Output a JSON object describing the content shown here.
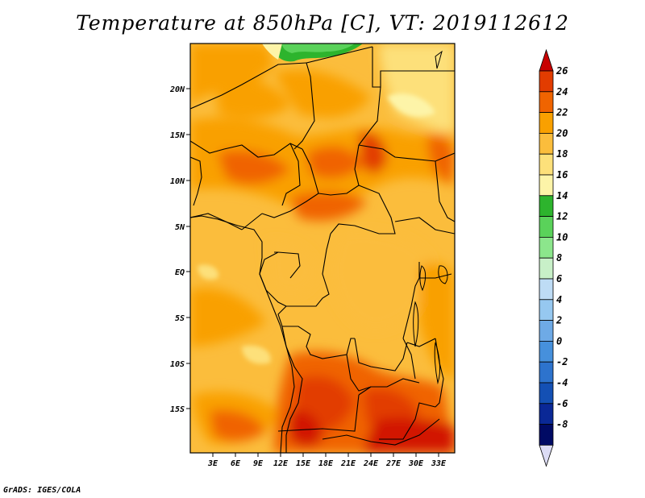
{
  "title": "Temperature at 850hPa [C], VT: 2019112612",
  "footer": "GrADS: IGES/COLA",
  "map": {
    "lat_ticks": [
      "20N",
      "15N",
      "10N",
      "5N",
      "EQ",
      "5S",
      "10S",
      "15S"
    ],
    "lon_ticks": [
      "3E",
      "6E",
      "9E",
      "12E",
      "15E",
      "18E",
      "21E",
      "24E",
      "27E",
      "30E",
      "33E"
    ]
  },
  "colorbar": {
    "labels": [
      "26",
      "24",
      "22",
      "20",
      "18",
      "16",
      "14",
      "12",
      "10",
      "8",
      "6",
      "4",
      "2",
      "0",
      "-2",
      "-4",
      "-6",
      "-8"
    ],
    "colors": [
      "#c80000",
      "#e23c00",
      "#f06400",
      "#f9a000",
      "#fbbd3c",
      "#fde07a",
      "#fdf4a8",
      "#2db42d",
      "#5ad25a",
      "#8ce68c",
      "#c8f0c8",
      "#bedcf5",
      "#96c8f0",
      "#6eaae6",
      "#4690dc",
      "#2d73cd",
      "#1450b4",
      "#0a2896",
      "#000a64",
      "#dcdcf5"
    ]
  }
}
